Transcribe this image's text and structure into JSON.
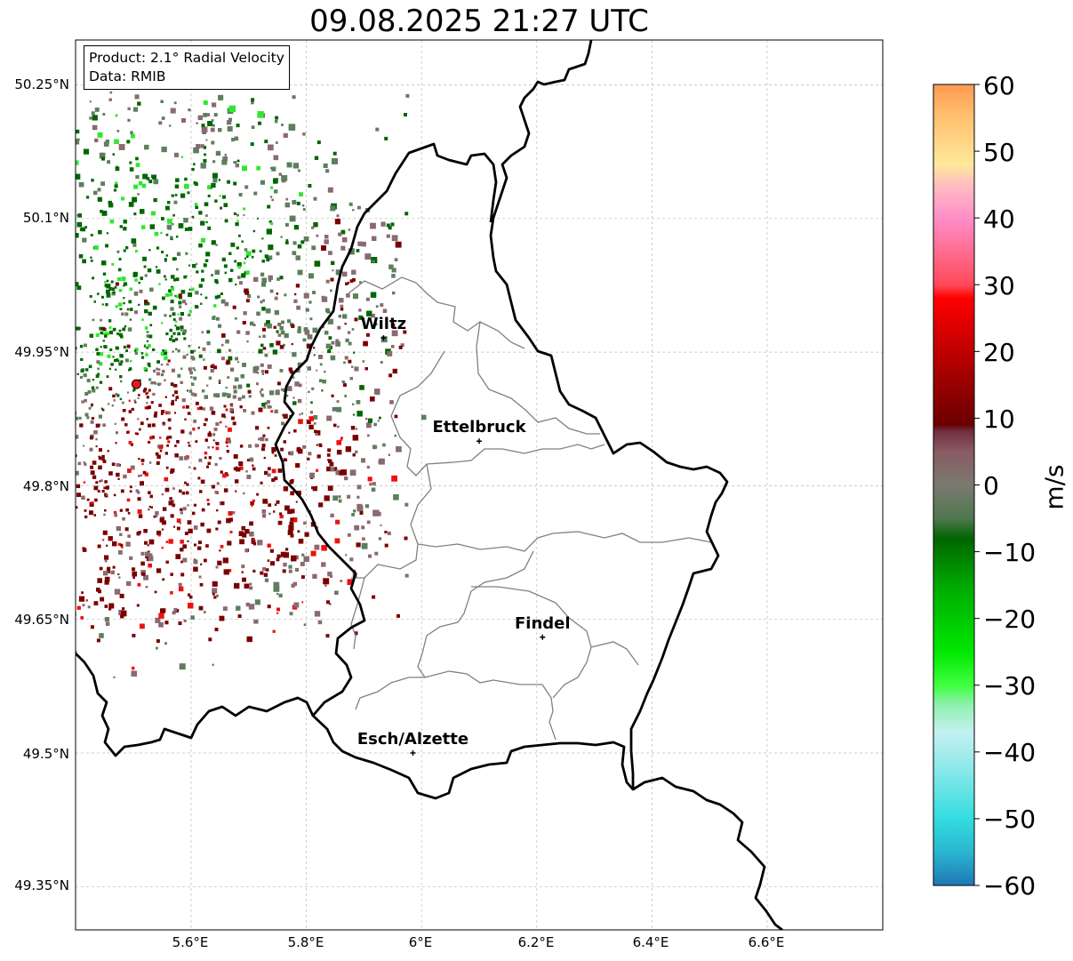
{
  "title": "09.08.2025 21:27 UTC",
  "info_box": {
    "product": "Product: 2.1° Radial Velocity",
    "data_source": "Data: RMIB"
  },
  "cities": [
    {
      "name": "Wiltz",
      "lon": 5.934,
      "lat": 49.966
    },
    {
      "name": "Ettelbruck",
      "lon": 6.1,
      "lat": 49.85
    },
    {
      "name": "Findel",
      "lon": 6.21,
      "lat": 49.63
    },
    {
      "name": "Esch/Alzette",
      "lon": 5.985,
      "lat": 49.5
    }
  ],
  "radar_site": {
    "lon": 5.505,
    "lat": 49.914,
    "color": "#e8191b"
  },
  "lat_ticks": [
    "49.35°N",
    "49.5°N",
    "49.65°N",
    "49.8°N",
    "49.95°N",
    "50.1°N",
    "50.25°N"
  ],
  "lon_ticks": [
    "5.6°E",
    "5.8°E",
    "6°E",
    "6.2°E",
    "6.4°E",
    "6.6°E"
  ],
  "colorbar": {
    "label": "m/s",
    "min": -60,
    "max": 60,
    "ticks": [
      "60",
      "50",
      "40",
      "30",
      "20",
      "10",
      "0",
      "−10",
      "−20",
      "−30",
      "−40",
      "−50",
      "−60"
    ],
    "stops": [
      {
        "v": -60,
        "c": "#1f77b4"
      },
      {
        "v": -55,
        "c": "#2ab6d0"
      },
      {
        "v": -50,
        "c": "#33dde0"
      },
      {
        "v": -40,
        "c": "#a8ecec"
      },
      {
        "v": -37,
        "c": "#c4f0f0"
      },
      {
        "v": -33,
        "c": "#90f0b0"
      },
      {
        "v": -30,
        "c": "#40ff40"
      },
      {
        "v": -25,
        "c": "#00e800"
      },
      {
        "v": -15,
        "c": "#00a800"
      },
      {
        "v": -8,
        "c": "#006400"
      },
      {
        "v": -5,
        "c": "#507850"
      },
      {
        "v": 0,
        "c": "#7a7a70"
      },
      {
        "v": 5,
        "c": "#8a5a62"
      },
      {
        "v": 8,
        "c": "#703040"
      },
      {
        "v": 9,
        "c": "#6a0000"
      },
      {
        "v": 18,
        "c": "#b00000"
      },
      {
        "v": 28,
        "c": "#ff0000"
      },
      {
        "v": 30,
        "c": "#ff4a5a"
      },
      {
        "v": 40,
        "c": "#ff8ec8"
      },
      {
        "v": 45,
        "c": "#ffbec0"
      },
      {
        "v": 48,
        "c": "#ffe89a"
      },
      {
        "v": 55,
        "c": "#ffc070"
      },
      {
        "v": 60,
        "c": "#ff9a50"
      }
    ]
  },
  "velocity_colors": {
    "inbound_dark": "#006600",
    "inbound_light": "#2ee82e",
    "near_zero": "#5e7e5e",
    "near_zero_warm": "#8a6a70",
    "outbound_dark": "#7a0000",
    "outbound_light": "#ee1010"
  }
}
